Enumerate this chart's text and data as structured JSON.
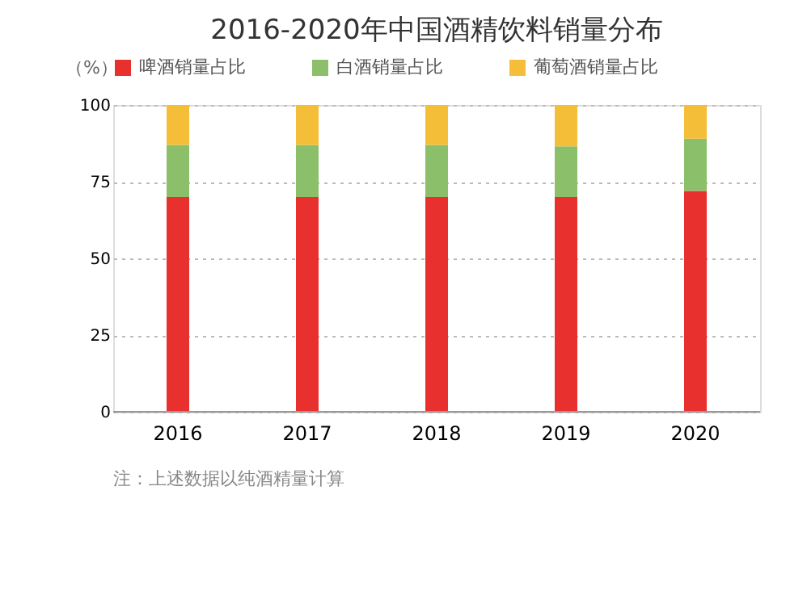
{
  "chart_data": {
    "type": "bar",
    "title": "2016-2020年中国酒精饮料销量分布",
    "ylabel": "（%）",
    "stacked": true,
    "categories": [
      "2016",
      "2017",
      "2018",
      "2019",
      "2020"
    ],
    "series": [
      {
        "name": "啤酒销量占比",
        "color": "#e8312f",
        "values": [
          70,
          70,
          70,
          70,
          72
        ]
      },
      {
        "name": "白酒销量占比",
        "color": "#8cbf6a",
        "values": [
          17,
          17,
          17,
          16.5,
          17
        ]
      },
      {
        "name": "葡萄酒销量占比",
        "color": "#f5be38",
        "values": [
          13,
          13,
          13,
          13.5,
          11
        ]
      }
    ],
    "ylim": [
      0,
      100
    ],
    "yticks": [
      0,
      25,
      50,
      75,
      100
    ],
    "grid": "y",
    "legend": "top",
    "annotations": [
      "注：上述数据以纯酒精量计算"
    ]
  }
}
